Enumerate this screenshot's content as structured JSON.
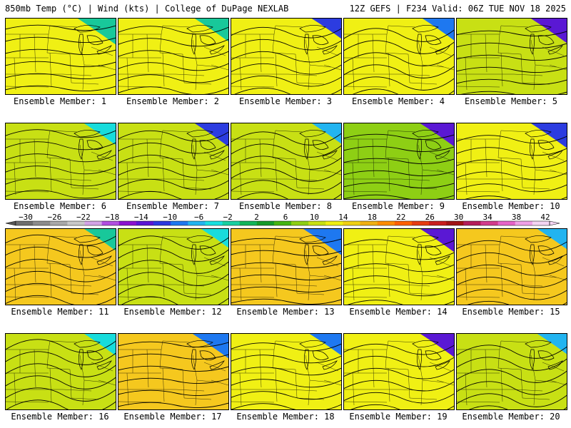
{
  "header": {
    "left": "850mb Temp (°C) | Wind (kts) | College of DuPage NEXLAB",
    "right": "12Z GEFS | F234 Valid: 06Z TUE NOV 18 2025"
  },
  "colorbar": {
    "ticks": [
      "-30",
      "-26",
      "-22",
      "-18",
      "-14",
      "-10",
      "-6",
      "-2",
      "2",
      "6",
      "10",
      "14",
      "18",
      "22",
      "26",
      "30",
      "34",
      "38",
      "42"
    ],
    "colors": [
      "#6e6e6e",
      "#8c8c8c",
      "#a8a8a8",
      "#c8c8c8",
      "#d3a3e6",
      "#b24ee0",
      "#8b12cf",
      "#5a16d4",
      "#2c38e0",
      "#1e78f0",
      "#22b4f0",
      "#18e0e0",
      "#18cfa0",
      "#12b45a",
      "#159a2a",
      "#44b412",
      "#8ecf12",
      "#c8e012",
      "#f0f012",
      "#f0d012",
      "#f0b012",
      "#ff8c00",
      "#ff6000",
      "#e63c12",
      "#c81e1e",
      "#a01414",
      "#b41e5a",
      "#d23c8c",
      "#e664c8",
      "#f0a0e6",
      "#f4d4f2"
    ]
  },
  "members": [
    {
      "label": "Ensemble Member: 1",
      "warm": 0.55,
      "cold": 0.15
    },
    {
      "label": "Ensemble Member: 2",
      "warm": 0.45,
      "cold": 0.1
    },
    {
      "label": "Ensemble Member: 3",
      "warm": 0.4,
      "cold": 0.75
    },
    {
      "label": "Ensemble Member: 4",
      "warm": 0.45,
      "cold": 0.55
    },
    {
      "label": "Ensemble Member: 5",
      "warm": 0.35,
      "cold": 0.8
    },
    {
      "label": "Ensemble Member: 6",
      "warm": 0.2,
      "cold": 0.35
    },
    {
      "label": "Ensemble Member: 7",
      "warm": 0.15,
      "cold": 0.7
    },
    {
      "label": "Ensemble Member: 8",
      "warm": 0.15,
      "cold": 0.45
    },
    {
      "label": "Ensemble Member: 9",
      "warm": 0.1,
      "cold": 0.85
    },
    {
      "label": "Ensemble Member: 10",
      "warm": 0.55,
      "cold": 0.7
    },
    {
      "label": "Ensemble Member: 11",
      "warm": 0.75,
      "cold": 0.2
    },
    {
      "label": "Ensemble Member: 12",
      "warm": 0.3,
      "cold": 0.3
    },
    {
      "label": "Ensemble Member: 13",
      "warm": 0.65,
      "cold": 0.55
    },
    {
      "label": "Ensemble Member: 14",
      "warm": 0.6,
      "cold": 0.9
    },
    {
      "label": "Ensemble Member: 15",
      "warm": 0.7,
      "cold": 0.45
    },
    {
      "label": "Ensemble Member: 16",
      "warm": 0.3,
      "cold": 0.3
    },
    {
      "label": "Ensemble Member: 17",
      "warm": 0.75,
      "cold": 0.5
    },
    {
      "label": "Ensemble Member: 18",
      "warm": 0.45,
      "cold": 0.6
    },
    {
      "label": "Ensemble Member: 19",
      "warm": 0.5,
      "cold": 0.85
    },
    {
      "label": "Ensemble Member: 20",
      "warm": 0.3,
      "cold": 0.45
    }
  ]
}
